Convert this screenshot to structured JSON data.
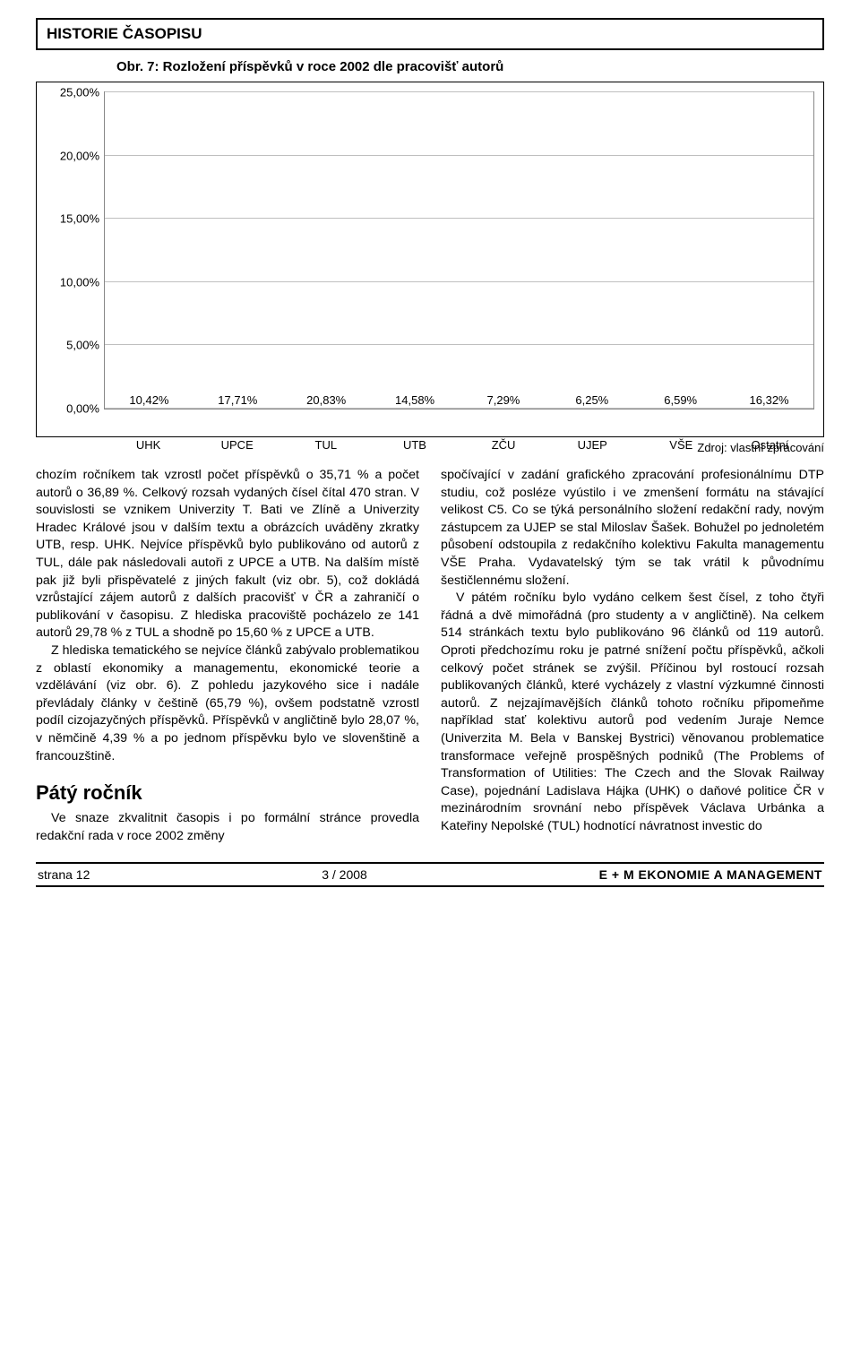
{
  "header": {
    "category": "HISTORIE ČASOPISU"
  },
  "figure": {
    "caption": "Obr. 7: Rozložení příspěvků v roce 2002 dle pracovišť autorů",
    "source": "Zdroj: vlastní zpracování"
  },
  "chart": {
    "type": "bar",
    "categories": [
      "UHK",
      "UPCE",
      "TUL",
      "UTB",
      "ZČU",
      "UJEP",
      "VŠE",
      "Ostatní"
    ],
    "values": [
      10.42,
      17.71,
      20.83,
      14.58,
      7.29,
      6.25,
      6.59,
      16.32
    ],
    "value_labels": [
      "10,42%",
      "17,71%",
      "20,83%",
      "14,58%",
      "7,29%",
      "6,25%",
      "6,59%",
      "16,32%"
    ],
    "bar_color": "#595959",
    "ylim": [
      0,
      25
    ],
    "ytick_step": 5,
    "ytick_labels": [
      "0,00%",
      "5,00%",
      "10,00%",
      "15,00%",
      "20,00%",
      "25,00%"
    ],
    "grid_color": "#bfbfbf",
    "background_color": "#ffffff",
    "label_fontsize": 13
  },
  "body": {
    "left": {
      "p1": "chozím ročníkem tak vzrostl počet příspěvků o 35,71 % a počet autorů o 36,89 %. Celkový rozsah vydaných čísel čítal 470 stran. V souvislosti se vznikem Univerzity T. Bati ve Zlíně a Univerzity Hradec Králové jsou v dalším textu a obrázcích uváděny zkratky UTB, resp. UHK. Nejvíce příspěvků bylo publikováno od autorů z TUL, dále pak následovali autoři z UPCE a UTB. Na dalším místě pak již byli přispěvatelé z jiných fakult (viz obr. 5), což dokládá vzrůstající zájem autorů z dalších pracovišť v ČR a zahraničí o publikování v časopisu. Z hlediska pracoviště pocházelo ze 141 autorů 29,78 % z TUL a shodně po 15,60 % z UPCE a UTB.",
      "p2": "Z hlediska tematického se nejvíce článků zabývalo problematikou z oblastí ekonomiky a managementu, ekonomické teorie a vzdělávání (viz obr. 6). Z pohledu jazykového sice i nadále převládaly články v češtině (65,79 %), ovšem podstatně vzrostl podíl cizojazyčných příspěvků. Příspěvků v angličtině bylo 28,07 %, v němčině 4,39 % a po jednom příspěvku bylo ve slovenštině a francouzštině.",
      "h": "Pátý ročník",
      "p3": "Ve snaze zkvalitnit časopis i po formální stránce provedla redakční rada v roce 2002 změny"
    },
    "right": {
      "p1": "spočívající v zadání grafického zpracování profesionálnímu DTP studiu, což posléze vyústilo i ve zmenšení formátu na stávající velikost C5. Co se týká personálního složení redakční rady, novým zástupcem za UJEP se stal Miloslav Šašek. Bohužel po jednoletém působení odstoupila z redakčního kolektivu Fakulta managementu VŠE Praha. Vydavatelský tým se tak vrátil k původnímu šestičlennému složení.",
      "p2": "V pátém ročníku bylo vydáno celkem šest čísel, z toho čtyři řádná a dvě mimořádná (pro studenty a v angličtině). Na celkem 514 stránkách textu bylo publikováno 96 článků od 119 autorů. Oproti předchozímu roku je patrné snížení počtu příspěvků, ačkoli celkový počet stránek se zvýšil. Příčinou byl rostoucí rozsah publikovaných článků, které vycházely z vlastní výzkumné činnosti autorů. Z nejzajímavějších článků tohoto ročníku připomeňme například stať kolektivu autorů pod vedením Juraje Nemce (Univerzita M. Bela v Banskej Bystrici) věnovanou problematice transformace veřejně prospěšných podniků (The Problems of Transformation of Utilities: The Czech and the Slovak Railway Case), pojednání Ladislava Hájka (UHK) o daňové politice ČR v mezinárodním srovnání nebo příspěvek Václava Urbánka a Kateřiny Nepolské (TUL) hodnotící návratnost investic do"
    }
  },
  "footer": {
    "left": "strana 12",
    "mid": "3 / 2008",
    "right": "E + M EKONOMIE A MANAGEMENT"
  }
}
